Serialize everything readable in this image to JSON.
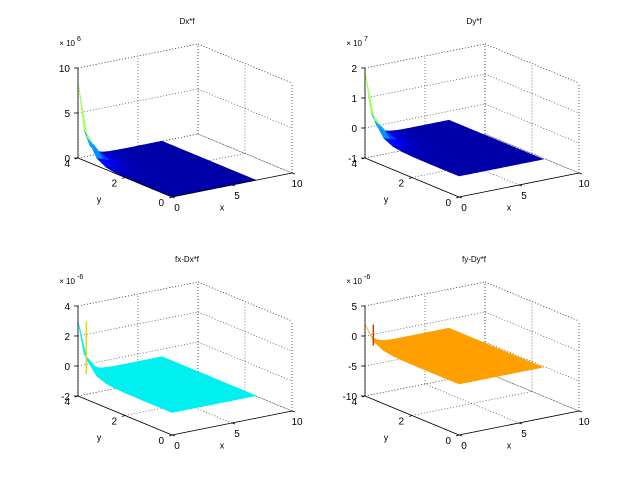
{
  "figure": {
    "background": "#ffffff"
  },
  "chart_data": [
    {
      "type": "surface",
      "title": "Dx*f",
      "xlabel": "x",
      "ylabel": "y",
      "exponent": "6",
      "xlim": [
        0,
        10
      ],
      "ylim": [
        0,
        4
      ],
      "zlim": [
        0,
        10
      ],
      "xticks": [
        0,
        5,
        10
      ],
      "yticks": [
        0,
        2,
        4
      ],
      "zticks": [
        0,
        5,
        10
      ],
      "surface_x_range": [
        0,
        7
      ],
      "surface_y_range": [
        0,
        4
      ],
      "base_level": 0,
      "peak_value": 8.5,
      "colormap": "jet",
      "grid": true
    },
    {
      "type": "surface",
      "title": "Dy*f",
      "xlabel": "x",
      "ylabel": "y",
      "exponent": "7",
      "xlim": [
        0,
        10
      ],
      "ylim": [
        0,
        4
      ],
      "zlim": [
        -1,
        2
      ],
      "xticks": [
        0,
        5,
        10
      ],
      "yticks": [
        0,
        2,
        4
      ],
      "zticks": [
        -1,
        0,
        1,
        2
      ],
      "surface_x_range": [
        0,
        7
      ],
      "surface_y_range": [
        0,
        4
      ],
      "base_level": -0.3,
      "peak_value": 1.9,
      "colormap": "jet",
      "grid": true
    },
    {
      "type": "surface",
      "title": "fx-Dx*f",
      "xlabel": "x",
      "ylabel": "y",
      "exponent": "-6",
      "xlim": [
        0,
        10
      ],
      "ylim": [
        0,
        4
      ],
      "zlim": [
        -2,
        4
      ],
      "xticks": [
        0,
        5,
        10
      ],
      "yticks": [
        0,
        2,
        4
      ],
      "zticks": [
        -2,
        0,
        2,
        4
      ],
      "surface_x_range": [
        0,
        7
      ],
      "surface_y_range": [
        0,
        4
      ],
      "base_level": -0.5,
      "peak_value": 3.0,
      "colormap": "cyan",
      "grid": true
    },
    {
      "type": "surface",
      "title": "fy-Dy*f",
      "xlabel": "x",
      "ylabel": "y",
      "exponent": "-6",
      "xlim": [
        0,
        10
      ],
      "ylim": [
        0,
        4
      ],
      "zlim": [
        -10,
        5
      ],
      "xticks": [
        0,
        5,
        10
      ],
      "yticks": [
        0,
        2,
        4
      ],
      "zticks": [
        -10,
        -5,
        0,
        5
      ],
      "surface_x_range": [
        0,
        7
      ],
      "surface_y_range": [
        0,
        4
      ],
      "base_level": -1.5,
      "peak_value": 2.0,
      "colormap": "orange",
      "grid": true
    }
  ]
}
